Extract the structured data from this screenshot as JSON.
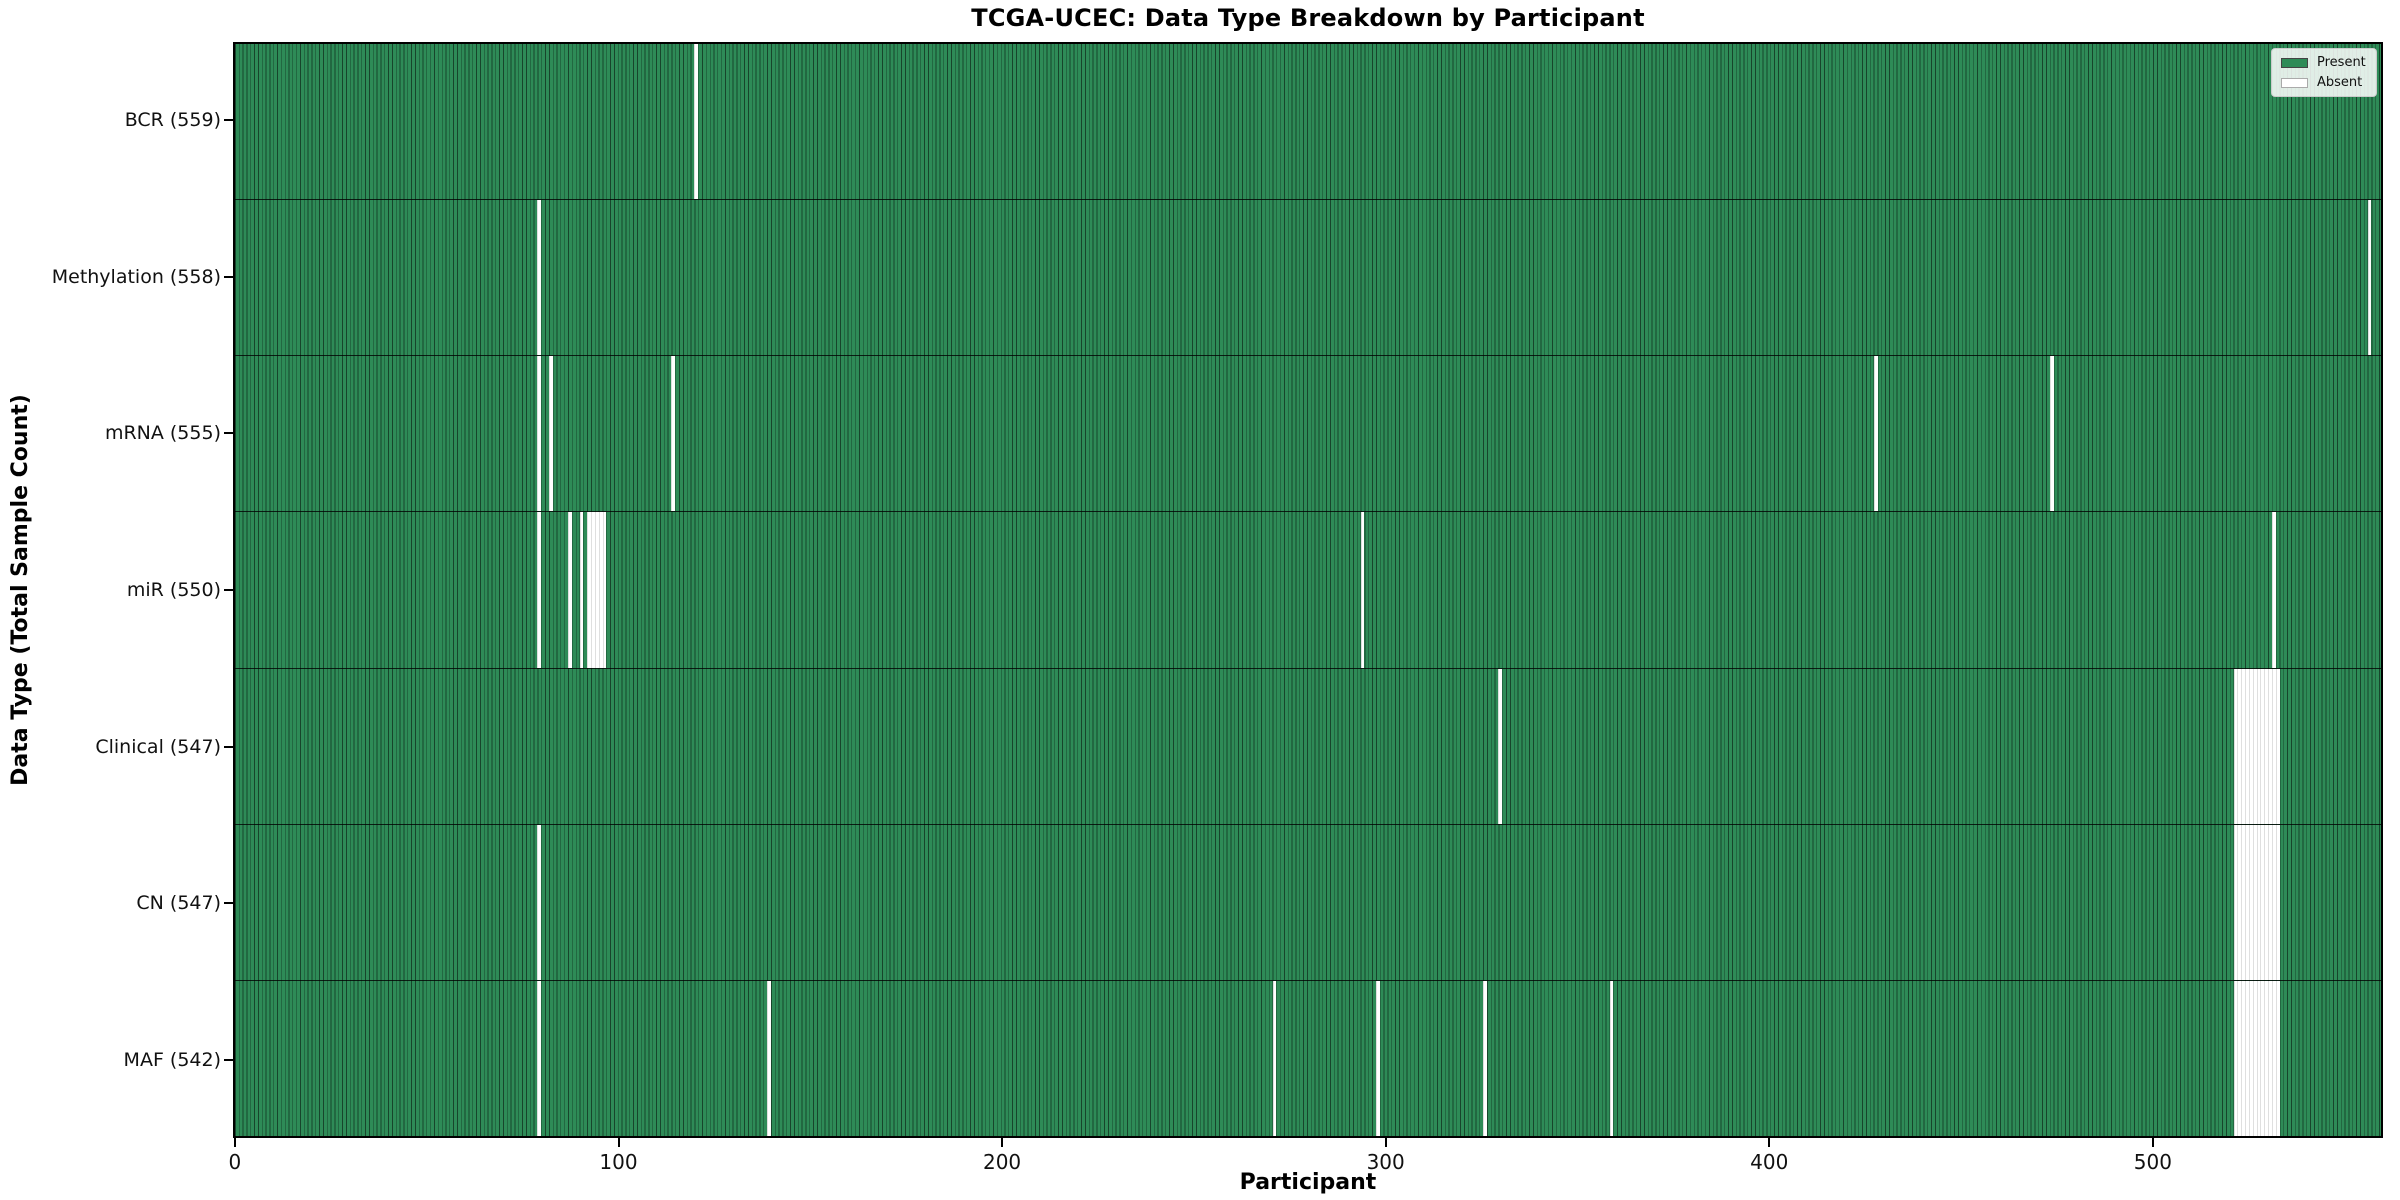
{
  "chart_data": {
    "type": "heatmap",
    "title": "TCGA-UCEC: Data Type Breakdown by Participant",
    "xlabel": "Participant",
    "ylabel": "Data Type (Total Sample Count)",
    "x_ticks": [
      0,
      100,
      200,
      300,
      400,
      500
    ],
    "x_range": [
      -0.5,
      560
    ],
    "n_participants": 560,
    "grid": false,
    "legend_position": "upper right",
    "legend": [
      {
        "label": "Present",
        "color": "#2e8b57"
      },
      {
        "label": "Absent",
        "color": "#ffffff"
      }
    ],
    "rows": [
      {
        "label": "BCR (559)",
        "data_type": "BCR",
        "present_count": 559,
        "absent_participants": [
          120
        ]
      },
      {
        "label": "Methylation (558)",
        "data_type": "Methylation",
        "present_count": 558,
        "absent_participants": [
          79,
          557
        ]
      },
      {
        "label": "mRNA (555)",
        "data_type": "mRNA",
        "present_count": 555,
        "absent_participants": [
          79,
          82,
          114,
          428,
          474
        ]
      },
      {
        "label": "miR (550)",
        "data_type": "miR",
        "present_count": 550,
        "absent_participants": [
          79,
          87,
          90,
          92,
          93,
          94,
          95,
          96,
          294,
          532
        ]
      },
      {
        "label": "Clinical (547)",
        "data_type": "Clinical",
        "present_count": 547,
        "absent_participants": [
          330,
          522,
          523,
          524,
          525,
          526,
          527,
          528,
          529,
          530,
          531,
          532,
          533
        ]
      },
      {
        "label": "CN (547)",
        "data_type": "CN",
        "present_count": 547,
        "absent_participants": [
          79,
          522,
          523,
          524,
          525,
          526,
          527,
          528,
          529,
          530,
          531,
          532,
          533
        ]
      },
      {
        "label": "MAF (542)",
        "data_type": "MAF",
        "present_count": 542,
        "absent_participants": [
          79,
          139,
          271,
          298,
          326,
          359,
          522,
          523,
          524,
          525,
          526,
          527,
          528,
          529,
          530,
          531,
          532,
          533
        ]
      }
    ]
  }
}
